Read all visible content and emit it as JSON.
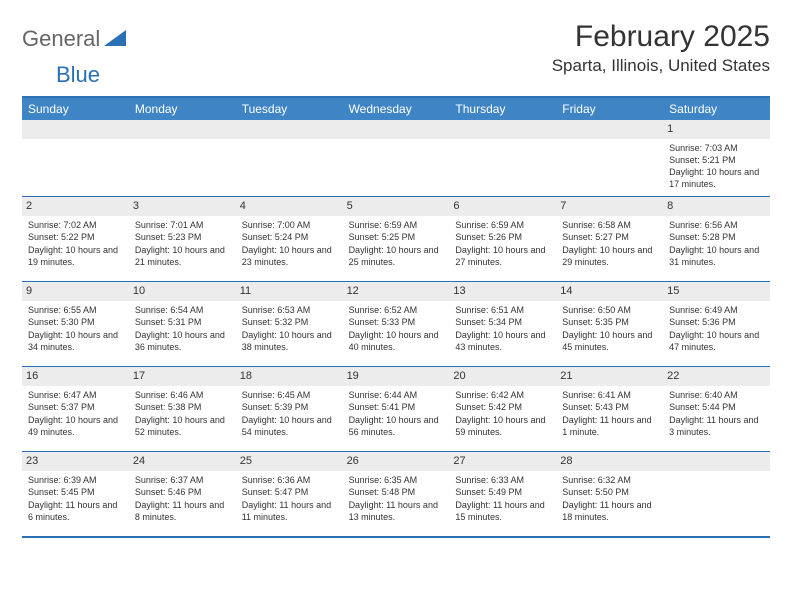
{
  "logo": {
    "text1": "General",
    "text2": "Blue"
  },
  "title": "February 2025",
  "location": "Sparta, Illinois, United States",
  "colors": {
    "header_bg": "#3f85c6",
    "border": "#2b6fb5",
    "daynum_bg": "#ececec",
    "text": "#333333",
    "logo_blue": "#2b6fb5"
  },
  "day_names": [
    "Sunday",
    "Monday",
    "Tuesday",
    "Wednesday",
    "Thursday",
    "Friday",
    "Saturday"
  ],
  "weeks": [
    [
      {
        "day": "",
        "sunrise": "",
        "sunset": "",
        "daylight": "",
        "empty": true
      },
      {
        "day": "",
        "sunrise": "",
        "sunset": "",
        "daylight": "",
        "empty": true
      },
      {
        "day": "",
        "sunrise": "",
        "sunset": "",
        "daylight": "",
        "empty": true
      },
      {
        "day": "",
        "sunrise": "",
        "sunset": "",
        "daylight": "",
        "empty": true
      },
      {
        "day": "",
        "sunrise": "",
        "sunset": "",
        "daylight": "",
        "empty": true
      },
      {
        "day": "",
        "sunrise": "",
        "sunset": "",
        "daylight": "",
        "empty": true
      },
      {
        "day": "1",
        "sunrise": "Sunrise: 7:03 AM",
        "sunset": "Sunset: 5:21 PM",
        "daylight": "Daylight: 10 hours and 17 minutes."
      }
    ],
    [
      {
        "day": "2",
        "sunrise": "Sunrise: 7:02 AM",
        "sunset": "Sunset: 5:22 PM",
        "daylight": "Daylight: 10 hours and 19 minutes."
      },
      {
        "day": "3",
        "sunrise": "Sunrise: 7:01 AM",
        "sunset": "Sunset: 5:23 PM",
        "daylight": "Daylight: 10 hours and 21 minutes."
      },
      {
        "day": "4",
        "sunrise": "Sunrise: 7:00 AM",
        "sunset": "Sunset: 5:24 PM",
        "daylight": "Daylight: 10 hours and 23 minutes."
      },
      {
        "day": "5",
        "sunrise": "Sunrise: 6:59 AM",
        "sunset": "Sunset: 5:25 PM",
        "daylight": "Daylight: 10 hours and 25 minutes."
      },
      {
        "day": "6",
        "sunrise": "Sunrise: 6:59 AM",
        "sunset": "Sunset: 5:26 PM",
        "daylight": "Daylight: 10 hours and 27 minutes."
      },
      {
        "day": "7",
        "sunrise": "Sunrise: 6:58 AM",
        "sunset": "Sunset: 5:27 PM",
        "daylight": "Daylight: 10 hours and 29 minutes."
      },
      {
        "day": "8",
        "sunrise": "Sunrise: 6:56 AM",
        "sunset": "Sunset: 5:28 PM",
        "daylight": "Daylight: 10 hours and 31 minutes."
      }
    ],
    [
      {
        "day": "9",
        "sunrise": "Sunrise: 6:55 AM",
        "sunset": "Sunset: 5:30 PM",
        "daylight": "Daylight: 10 hours and 34 minutes."
      },
      {
        "day": "10",
        "sunrise": "Sunrise: 6:54 AM",
        "sunset": "Sunset: 5:31 PM",
        "daylight": "Daylight: 10 hours and 36 minutes."
      },
      {
        "day": "11",
        "sunrise": "Sunrise: 6:53 AM",
        "sunset": "Sunset: 5:32 PM",
        "daylight": "Daylight: 10 hours and 38 minutes."
      },
      {
        "day": "12",
        "sunrise": "Sunrise: 6:52 AM",
        "sunset": "Sunset: 5:33 PM",
        "daylight": "Daylight: 10 hours and 40 minutes."
      },
      {
        "day": "13",
        "sunrise": "Sunrise: 6:51 AM",
        "sunset": "Sunset: 5:34 PM",
        "daylight": "Daylight: 10 hours and 43 minutes."
      },
      {
        "day": "14",
        "sunrise": "Sunrise: 6:50 AM",
        "sunset": "Sunset: 5:35 PM",
        "daylight": "Daylight: 10 hours and 45 minutes."
      },
      {
        "day": "15",
        "sunrise": "Sunrise: 6:49 AM",
        "sunset": "Sunset: 5:36 PM",
        "daylight": "Daylight: 10 hours and 47 minutes."
      }
    ],
    [
      {
        "day": "16",
        "sunrise": "Sunrise: 6:47 AM",
        "sunset": "Sunset: 5:37 PM",
        "daylight": "Daylight: 10 hours and 49 minutes."
      },
      {
        "day": "17",
        "sunrise": "Sunrise: 6:46 AM",
        "sunset": "Sunset: 5:38 PM",
        "daylight": "Daylight: 10 hours and 52 minutes."
      },
      {
        "day": "18",
        "sunrise": "Sunrise: 6:45 AM",
        "sunset": "Sunset: 5:39 PM",
        "daylight": "Daylight: 10 hours and 54 minutes."
      },
      {
        "day": "19",
        "sunrise": "Sunrise: 6:44 AM",
        "sunset": "Sunset: 5:41 PM",
        "daylight": "Daylight: 10 hours and 56 minutes."
      },
      {
        "day": "20",
        "sunrise": "Sunrise: 6:42 AM",
        "sunset": "Sunset: 5:42 PM",
        "daylight": "Daylight: 10 hours and 59 minutes."
      },
      {
        "day": "21",
        "sunrise": "Sunrise: 6:41 AM",
        "sunset": "Sunset: 5:43 PM",
        "daylight": "Daylight: 11 hours and 1 minute."
      },
      {
        "day": "22",
        "sunrise": "Sunrise: 6:40 AM",
        "sunset": "Sunset: 5:44 PM",
        "daylight": "Daylight: 11 hours and 3 minutes."
      }
    ],
    [
      {
        "day": "23",
        "sunrise": "Sunrise: 6:39 AM",
        "sunset": "Sunset: 5:45 PM",
        "daylight": "Daylight: 11 hours and 6 minutes."
      },
      {
        "day": "24",
        "sunrise": "Sunrise: 6:37 AM",
        "sunset": "Sunset: 5:46 PM",
        "daylight": "Daylight: 11 hours and 8 minutes."
      },
      {
        "day": "25",
        "sunrise": "Sunrise: 6:36 AM",
        "sunset": "Sunset: 5:47 PM",
        "daylight": "Daylight: 11 hours and 11 minutes."
      },
      {
        "day": "26",
        "sunrise": "Sunrise: 6:35 AM",
        "sunset": "Sunset: 5:48 PM",
        "daylight": "Daylight: 11 hours and 13 minutes."
      },
      {
        "day": "27",
        "sunrise": "Sunrise: 6:33 AM",
        "sunset": "Sunset: 5:49 PM",
        "daylight": "Daylight: 11 hours and 15 minutes."
      },
      {
        "day": "28",
        "sunrise": "Sunrise: 6:32 AM",
        "sunset": "Sunset: 5:50 PM",
        "daylight": "Daylight: 11 hours and 18 minutes."
      },
      {
        "day": "",
        "sunrise": "",
        "sunset": "",
        "daylight": "",
        "empty": true
      }
    ]
  ]
}
